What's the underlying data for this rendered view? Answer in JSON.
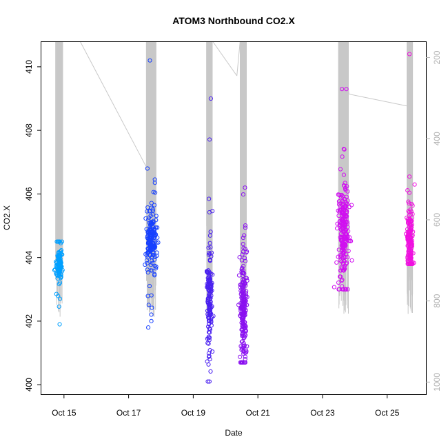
{
  "chart_data": {
    "type": "scatter",
    "title": "ATOM3 Northbound CO2.X",
    "xlabel": "Date",
    "ylabel": "CO2.X",
    "ylim": [
      399.7,
      410.8
    ],
    "y_ticks": [
      "400",
      "402",
      "404",
      "406",
      "408",
      "410"
    ],
    "x_ticks": [
      "Oct 15",
      "Oct 17",
      "Oct 19",
      "Oct 21",
      "Oct 23",
      "Oct 25"
    ],
    "x_tick_values": [
      "2016-10-15",
      "2016-10-17",
      "2016-10-19",
      "2016-10-21",
      "2016-10-23",
      "2016-10-25"
    ],
    "xlim": [
      "2016-10-14.3",
      "2016-10-26.2"
    ],
    "y2_label": "",
    "y2_ticks": [
      "200",
      "400",
      "600",
      "800",
      "1000"
    ],
    "y2lim": [
      1030,
      160
    ],
    "grid": false,
    "series_colors": [
      "#00a0ff",
      "#1740ff",
      "#4a20f0",
      "#8a10f0",
      "#d010f0",
      "#f010e0"
    ],
    "line_color": "#c8c8c8",
    "series": [
      {
        "x_center": 14.85,
        "x_spread": 0.1,
        "y_center": 403.7,
        "y_spread": 0.25,
        "y_min": 401.9,
        "y_max": 404.5,
        "n": 110
      },
      {
        "x_center": 17.7,
        "x_spread": 0.14,
        "y_center": 404.5,
        "y_spread": 0.4,
        "y_min": 401.8,
        "y_max": 410.2,
        "n": 190
      },
      {
        "x_center": 19.5,
        "x_spread": 0.08,
        "y_center": 402.8,
        "y_spread": 0.7,
        "y_min": 400.1,
        "y_max": 409.0,
        "n": 150
      },
      {
        "x_center": 20.55,
        "x_spread": 0.09,
        "y_center": 402.3,
        "y_spread": 0.75,
        "y_min": 400.7,
        "y_max": 406.2,
        "n": 200
      },
      {
        "x_center": 23.65,
        "x_spread": 0.14,
        "y_center": 404.8,
        "y_spread": 0.7,
        "y_min": 403.0,
        "y_max": 409.3,
        "n": 230
      },
      {
        "x_center": 25.7,
        "x_spread": 0.08,
        "y_center": 404.5,
        "y_spread": 0.45,
        "y_min": 403.8,
        "y_max": 410.4,
        "n": 160
      }
    ],
    "flight_track": [
      [
        15.5,
        160
      ],
      [
        17.55,
        470
      ],
      [
        17.6,
        160
      ],
      [
        17.85,
        160
      ],
      [
        19.3,
        160
      ],
      [
        19.6,
        160
      ],
      [
        20.35,
        245
      ],
      [
        20.45,
        160
      ],
      [
        23.6,
        160
      ],
      [
        23.82,
        290
      ],
      [
        25.65,
        320
      ]
    ]
  }
}
